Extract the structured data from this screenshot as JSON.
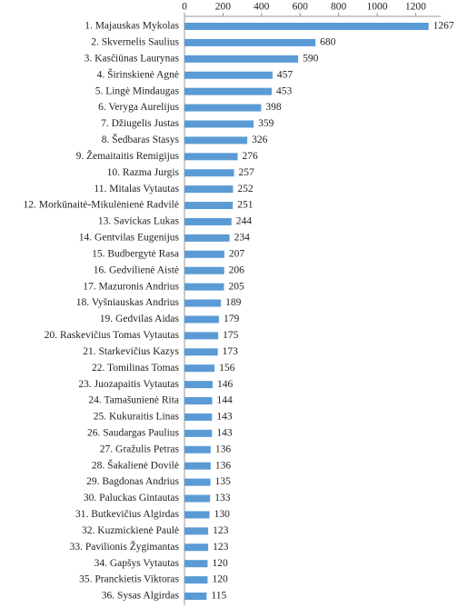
{
  "chart_data": {
    "type": "bar",
    "orientation": "horizontal",
    "color": "#5b9bd5",
    "categories": [
      "1. Majauskas Mykolas",
      "2. Skvernelis Saulius",
      "3. Kasčiūnas Laurynas",
      "4. Širinskienė Agnė",
      "5. Lingė Mindaugas",
      "6. Veryga Aurelijus",
      "7. Džiugelis Justas",
      "8. Šedbaras Stasys",
      "9. Žemaitaitis Remigijus",
      "10. Razma Jurgis",
      "11. Mitalas Vytautas",
      "12. Morkūnaitė-Mikulėnienė Radvilė",
      "13. Savickas Lukas",
      "14. Gentvilas Eugenijus",
      "15. Budbergytė Rasa",
      "16. Gedvilienė Aistė",
      "17. Mazuronis Andrius",
      "18. Vyšniauskas Andrius",
      "19. Gedvilas Aidas",
      "20. Raskevičius Tomas Vytautas",
      "21. Starkevičius Kazys",
      "22. Tomilinas Tomas",
      "23. Juozapaitis Vytautas",
      "24. Tamašunienė Rita",
      "25. Kukuraitis Linas",
      "26. Saudargas Paulius",
      "27. Gražulis Petras",
      "28. Šakalienė Dovilė",
      "29. Bagdonas Andrius",
      "30. Paluckas Gintautas",
      "31. Butkevičius Algirdas",
      "32. Kuzmickienė Paulė",
      "33. Pavilionis Žygimantas",
      "34. Gapšys Vytautas",
      "35. Pranckietis Viktoras",
      "36. Sysas Algirdas"
    ],
    "values": [
      1267,
      680,
      590,
      457,
      453,
      398,
      359,
      326,
      276,
      257,
      252,
      251,
      244,
      234,
      207,
      206,
      205,
      189,
      179,
      175,
      173,
      156,
      146,
      144,
      143,
      143,
      136,
      136,
      135,
      133,
      130,
      123,
      123,
      120,
      120,
      115
    ],
    "xlim": [
      0,
      1330
    ],
    "xticks": [
      0,
      200,
      400,
      600,
      800,
      1000,
      1200
    ]
  }
}
